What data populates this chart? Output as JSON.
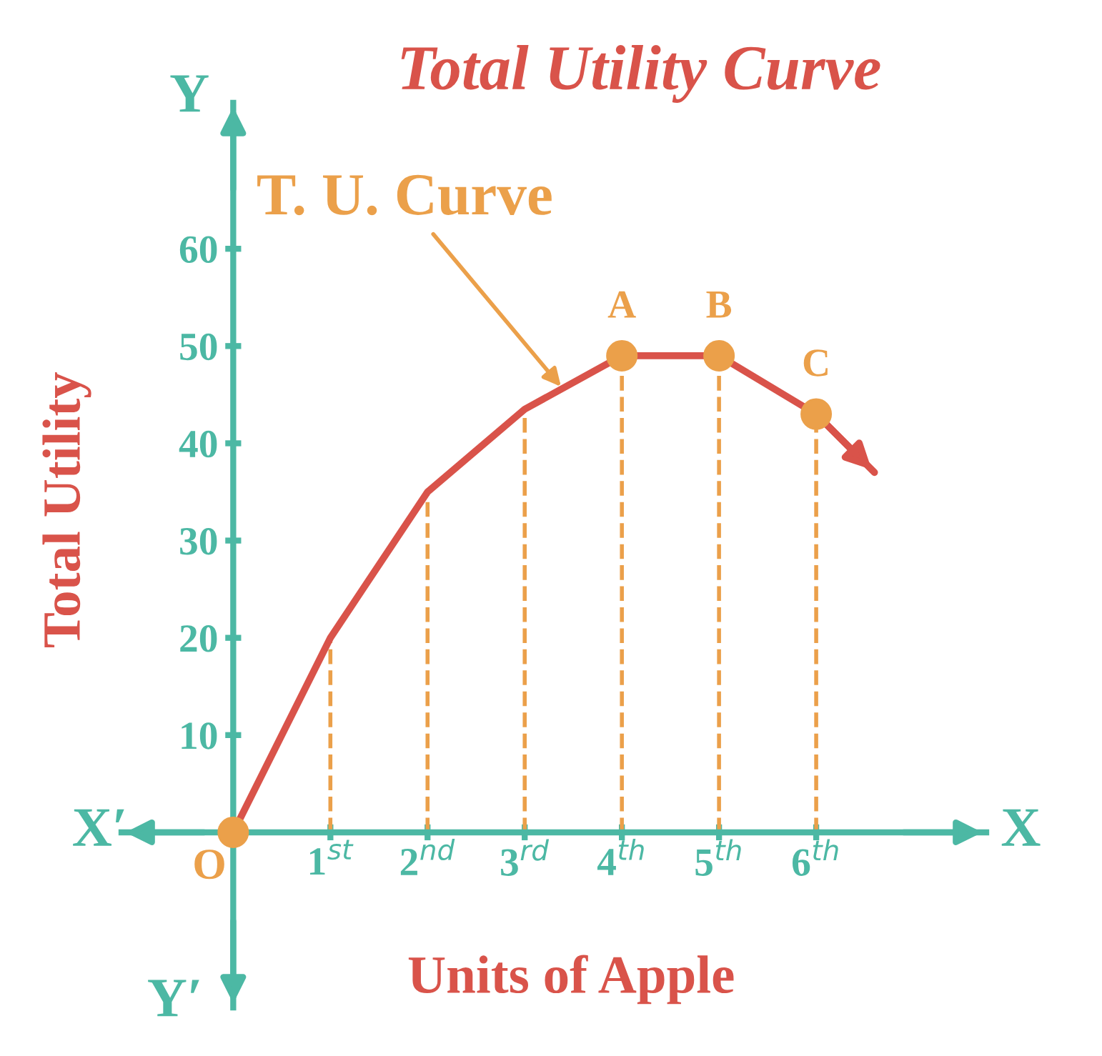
{
  "chart_data": {
    "type": "line",
    "title": "Total Utility Curve",
    "xlabel": "Units of Apple",
    "ylabel": "Total Utility",
    "x": [
      0,
      1,
      2,
      3,
      4,
      5,
      6,
      6.6
    ],
    "series": [
      {
        "color": "#d9534a",
        "values": [
          0,
          20,
          35,
          43.5,
          49,
          49,
          43,
          37
        ],
        "marker": "none"
      },
      {
        "type": "scatter",
        "color": "#eba04a",
        "x": [
          0,
          4,
          5,
          6
        ],
        "values": [
          0,
          49,
          49,
          43
        ],
        "marker": "circle"
      }
    ],
    "xlim": [
      -1.15,
      7.75
    ],
    "ylim": [
      -18,
      75
    ],
    "xticks": [
      {
        "value": 1,
        "label": "1$^{st}$"
      },
      {
        "value": 2,
        "label": "2$^{nd}$"
      },
      {
        "value": 3,
        "label": "3$^{rd}$"
      },
      {
        "value": 4,
        "label": "4$^{th}$"
      },
      {
        "value": 5,
        "label": "5$^{th}$"
      },
      {
        "value": 6,
        "label": "6$^{th}$"
      }
    ],
    "yticks": [
      10,
      20,
      30,
      40,
      50,
      60
    ],
    "ref_lines": [
      {
        "axis": "x",
        "value": 1,
        "color": "#eba04a",
        "line_style": "dashed"
      },
      {
        "axis": "x",
        "value": 2,
        "color": "#eba04a",
        "line_style": "dashed"
      },
      {
        "axis": "x",
        "value": 3,
        "color": "#eba04a",
        "line_style": "dashed"
      },
      {
        "axis": "x",
        "value": 4,
        "color": "#eba04a",
        "line_style": "dashed"
      },
      {
        "axis": "x",
        "value": 5,
        "color": "#eba04a",
        "line_style": "dashed"
      },
      {
        "axis": "x",
        "value": 6,
        "color": "#eba04a",
        "line_style": "dashed"
      }
    ],
    "annotations": [
      "X",
      "X′",
      "Y",
      "Y′",
      {
        "text": "T. U. Curve",
        "x": 3.4,
        "y": 45.5
      },
      {
        "text": "O",
        "x": 0,
        "y": 0
      },
      {
        "text": "A",
        "x": 4,
        "y": 49
      },
      {
        "text": "B",
        "x": 5,
        "y": 49
      },
      {
        "text": "C",
        "x": 6,
        "y": 43
      }
    ],
    "grid": false,
    "legend": false
  }
}
